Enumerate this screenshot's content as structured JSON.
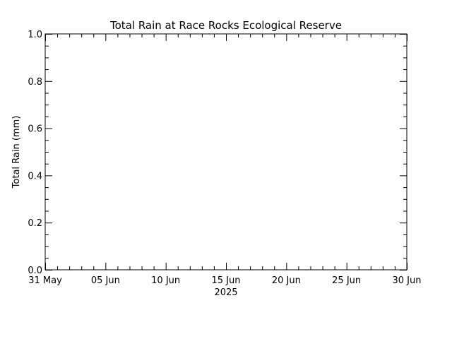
{
  "chart_data": {
    "type": "line",
    "title": "Total Rain at Race Rocks Ecological Reserve",
    "xlabel": "2025",
    "ylabel": "Total Rain (mm)",
    "x_ticks": [
      "31 May",
      "05 Jun",
      "10 Jun",
      "15 Jun",
      "20 Jun",
      "25 Jun",
      "30 Jun"
    ],
    "x_range": [
      "2025-05-31",
      "2025-06-30"
    ],
    "y_ticks": [
      "0.0",
      "0.2",
      "0.4",
      "0.6",
      "0.8",
      "1.0"
    ],
    "ylim": [
      0,
      1
    ],
    "grid": false,
    "series": [
      {
        "x": [],
        "values": []
      }
    ],
    "colors": {
      "axis": "#000000",
      "background": "#ffffff"
    }
  }
}
